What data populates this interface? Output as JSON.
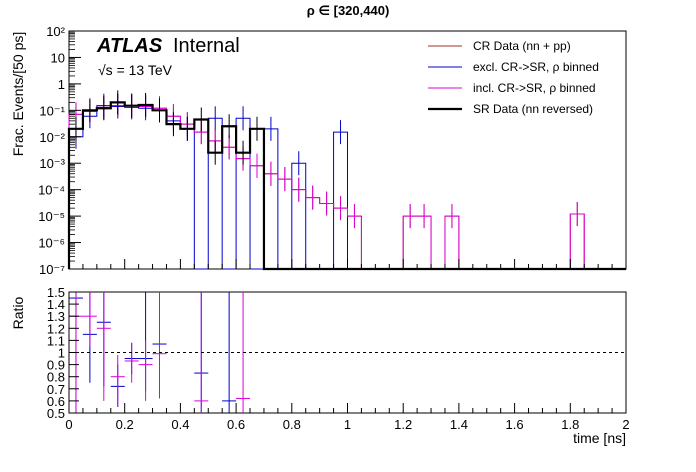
{
  "chart_data": [
    {
      "id": "main",
      "type": "histogram",
      "title": "ρ ∈ [320,440)",
      "xlabel": "time [ns]",
      "ylabel": "Frac. Events/[50 ps]",
      "y_scale": "log",
      "xlim": [
        0,
        2
      ],
      "ylim": [
        1e-07,
        100
      ],
      "bin_width": 0.05,
      "atlas_label": "ATLAS",
      "atlas_suffix": "Internal",
      "energy_label": "√s = 13 TeV",
      "y_tick_labels": [
        "10⁻⁷",
        "10⁻⁶",
        "10⁻⁵",
        "10⁻⁴",
        "10⁻³",
        "10⁻²",
        "10⁻¹",
        "1",
        "10",
        "10²"
      ],
      "legend_position": "top-right",
      "series": [
        {
          "name": "CR Data (nn + pp)",
          "color": "#a03020",
          "width": 1,
          "values": [
            0.07,
            0.09,
            0.13,
            0.15,
            0.15,
            0.14,
            0.12,
            0.06,
            0.03,
            0.015,
            0.007,
            0.004,
            0.0015,
            0.0008,
            0.0004,
            0.00025,
            0.0001,
            5e-05,
            3e-05,
            2e-05,
            1e-05,
            0,
            0,
            0,
            1e-05,
            1e-05,
            0,
            1e-05,
            0,
            0,
            0,
            0,
            0,
            0,
            0,
            0,
            1.2e-05,
            0,
            0,
            0
          ]
        },
        {
          "name": "excl. CR->SR, ρ binned",
          "color": "#0000cc",
          "width": 1,
          "values": [
            0.01,
            0.06,
            0.15,
            0.14,
            0.13,
            0.12,
            0.1,
            0.04,
            0.02,
            0,
            0.05,
            0,
            0.05,
            0,
            0.02,
            0,
            0.001,
            0,
            0,
            0.015,
            0,
            0,
            0,
            0,
            0,
            0,
            0,
            0,
            0,
            0,
            0,
            0,
            0,
            0,
            0,
            0,
            0,
            0,
            0,
            0
          ]
        },
        {
          "name": "incl. CR->SR, ρ binned",
          "color": "#dd00dd",
          "width": 1,
          "values": [
            0.07,
            0.09,
            0.13,
            0.15,
            0.15,
            0.14,
            0.12,
            0.06,
            0.03,
            0.015,
            0.007,
            0.004,
            0.0015,
            0.0008,
            0.0004,
            0.00025,
            0.0001,
            5e-05,
            3e-05,
            2e-05,
            1e-05,
            0,
            0,
            0,
            1e-05,
            1e-05,
            0,
            1e-05,
            0,
            0,
            0,
            0,
            0,
            0,
            0,
            0,
            1.2e-05,
            0,
            0,
            0
          ]
        },
        {
          "name": "SR Data (nn reversed)",
          "color": "#000000",
          "width": 2.2,
          "values": [
            0.02,
            0.1,
            0.12,
            0.2,
            0.15,
            0.16,
            0.1,
            0.03,
            0.02,
            0.045,
            0.0025,
            0.025,
            0.0025,
            0.02,
            0,
            0,
            0,
            0,
            0,
            0,
            0,
            0,
            0,
            0,
            0,
            0,
            0,
            0,
            0,
            0,
            0,
            0,
            0,
            0,
            0,
            0,
            0,
            0,
            0,
            0
          ]
        }
      ]
    },
    {
      "id": "ratio",
      "type": "ratio",
      "ylabel": "Ratio",
      "xlabel": "time [ns]",
      "xlim": [
        0,
        2
      ],
      "ylim": [
        0.5,
        1.5
      ],
      "reference_line": 1,
      "x_tick_labels": [
        "0",
        "0.2",
        "0.4",
        "0.6",
        "0.8",
        "1",
        "1.2",
        "1.4",
        "1.6",
        "1.8",
        "2"
      ],
      "y_tick_labels": [
        "0.5",
        "0.6",
        "0.7",
        "0.8",
        "0.9",
        "1",
        "1.1",
        "1.2",
        "1.3",
        "1.4",
        "1.5"
      ],
      "series": [
        {
          "name": "excl. CR->SR, ρ binned",
          "color": "#0000cc",
          "points": [
            {
              "x": 0.025,
              "y": 1.45,
              "lo": 0.5,
              "hi": 1.5
            },
            {
              "x": 0.075,
              "y": 1.15,
              "lo": 0.75,
              "hi": 1.5
            },
            {
              "x": 0.125,
              "y": 1.25,
              "lo": 0.72,
              "hi": 1.5
            },
            {
              "x": 0.175,
              "y": 0.72,
              "lo": 0.55,
              "hi": 0.9
            },
            {
              "x": 0.225,
              "y": 0.95,
              "lo": 0.82,
              "hi": 1.08
            },
            {
              "x": 0.275,
              "y": 0.95,
              "lo": 0.68,
              "hi": 1.5
            },
            {
              "x": 0.325,
              "y": 1.07,
              "lo": 0.65,
              "hi": 1.5
            },
            {
              "x": 0.475,
              "y": 0.83,
              "lo": 0.5,
              "hi": 1.5
            },
            {
              "x": 0.575,
              "y": 0.6,
              "lo": 0.5,
              "hi": 1.5
            }
          ]
        },
        {
          "name": "incl. CR->SR, ρ binned",
          "color": "#dd00dd",
          "points": [
            {
              "x": 0.025,
              "y": 1.3,
              "lo": 0.5,
              "hi": 1.5
            },
            {
              "x": 0.075,
              "y": 1.3,
              "lo": 1.05,
              "hi": 1.5
            },
            {
              "x": 0.125,
              "y": 1.2,
              "lo": 0.6,
              "hi": 1.5
            },
            {
              "x": 0.175,
              "y": 0.8,
              "lo": 0.55,
              "hi": 0.98
            },
            {
              "x": 0.225,
              "y": 0.93,
              "lo": 0.75,
              "hi": 1.08
            },
            {
              "x": 0.275,
              "y": 0.9,
              "lo": 0.6,
              "hi": 1.1
            },
            {
              "x": 0.325,
              "y": 0.99,
              "lo": 0.62,
              "hi": 1.5
            },
            {
              "x": 0.475,
              "y": 0.6,
              "lo": 0.5,
              "hi": 1.5
            },
            {
              "x": 0.625,
              "y": 0.62,
              "lo": 0.5,
              "hi": 1.5
            }
          ]
        }
      ]
    }
  ]
}
